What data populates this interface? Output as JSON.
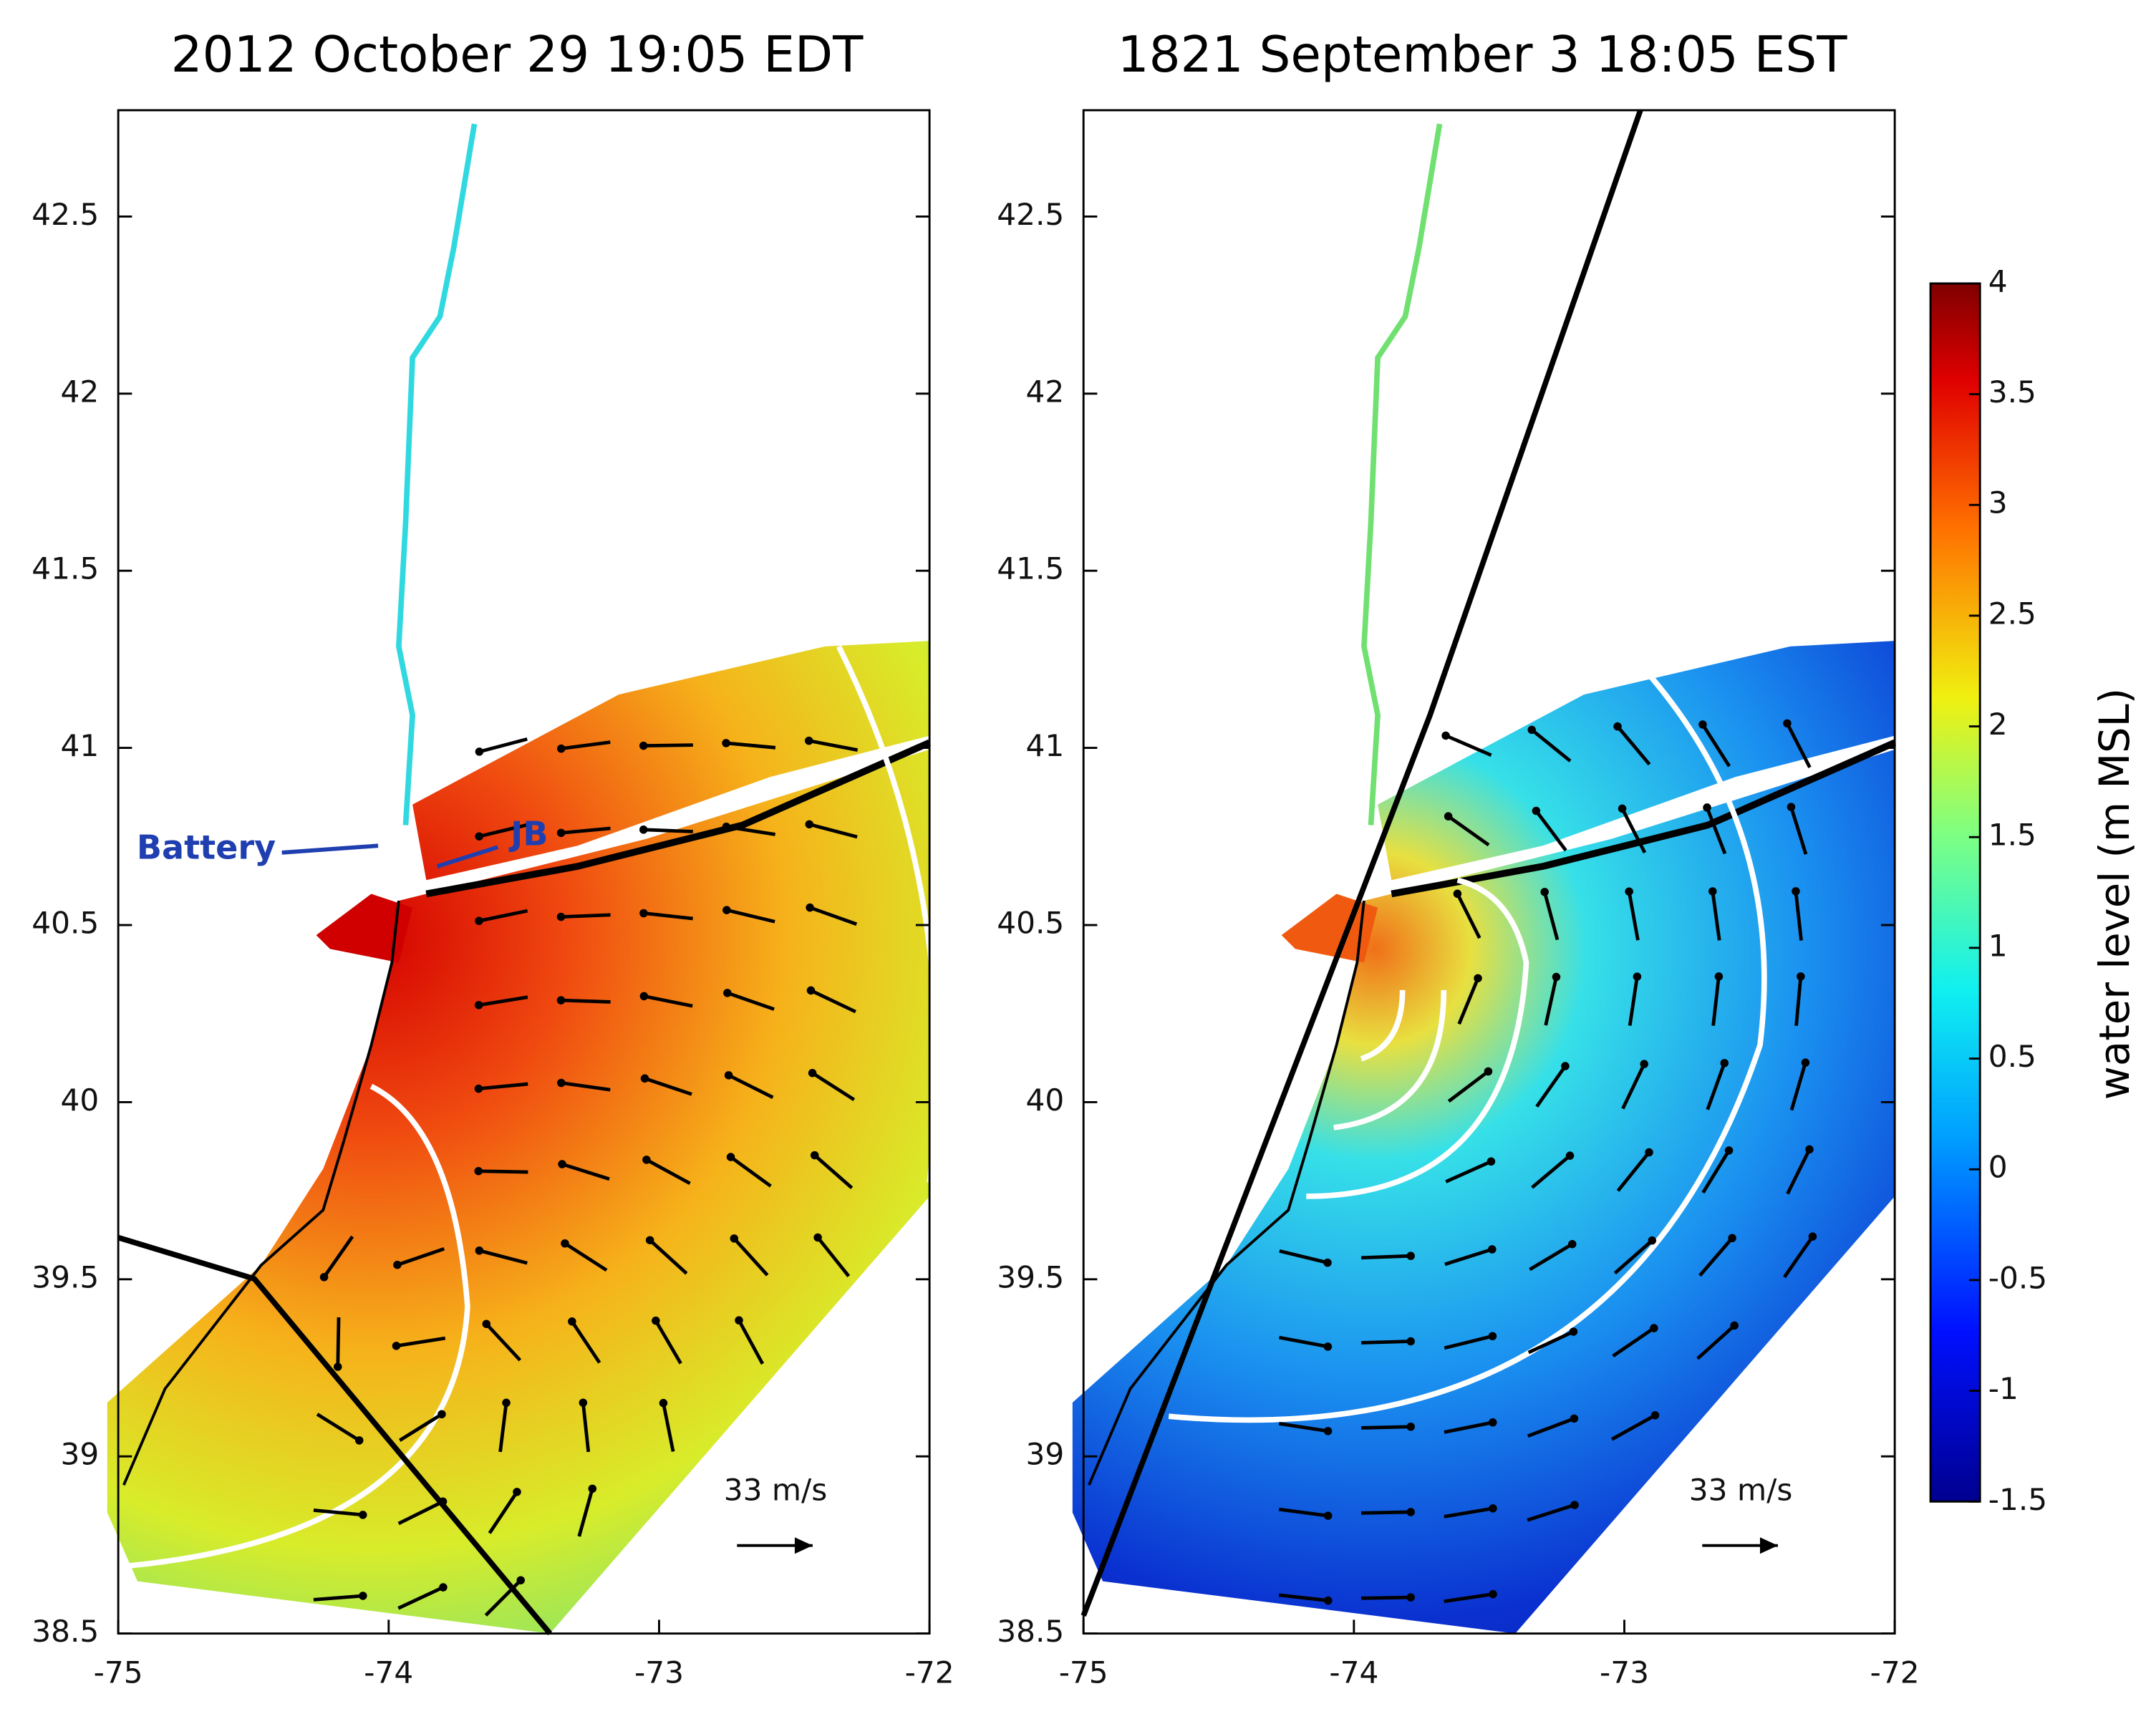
{
  "panels": [
    {
      "title": "2012 October 29 19:05 EDT",
      "xlim": [
        -75,
        -72
      ],
      "ylim": [
        38.5,
        42.8
      ],
      "xticks": [
        -75,
        -74,
        -73,
        -72
      ],
      "yticks": [
        38.5,
        39,
        39.5,
        40,
        40.5,
        41,
        41.5,
        42,
        42.5
      ],
      "scale_label": "33 m/s",
      "annotations": [
        "Battery",
        "JB"
      ]
    },
    {
      "title": "1821 September 3 18:05 EST",
      "xlim": [
        -75,
        -72
      ],
      "ylim": [
        38.5,
        42.8
      ],
      "xticks": [
        -75,
        -74,
        -73,
        -72
      ],
      "yticks": [
        38.5,
        39,
        39.5,
        40,
        40.5,
        41,
        41.5,
        42,
        42.5
      ],
      "scale_label": "33 m/s"
    }
  ],
  "colorbar": {
    "label": "water level (m MSL)",
    "lim": [
      -1.5,
      4
    ],
    "ticks": [
      -1.5,
      -1,
      -0.5,
      0,
      0.5,
      1,
      1.5,
      2,
      2.5,
      3,
      3.5,
      4
    ]
  }
}
